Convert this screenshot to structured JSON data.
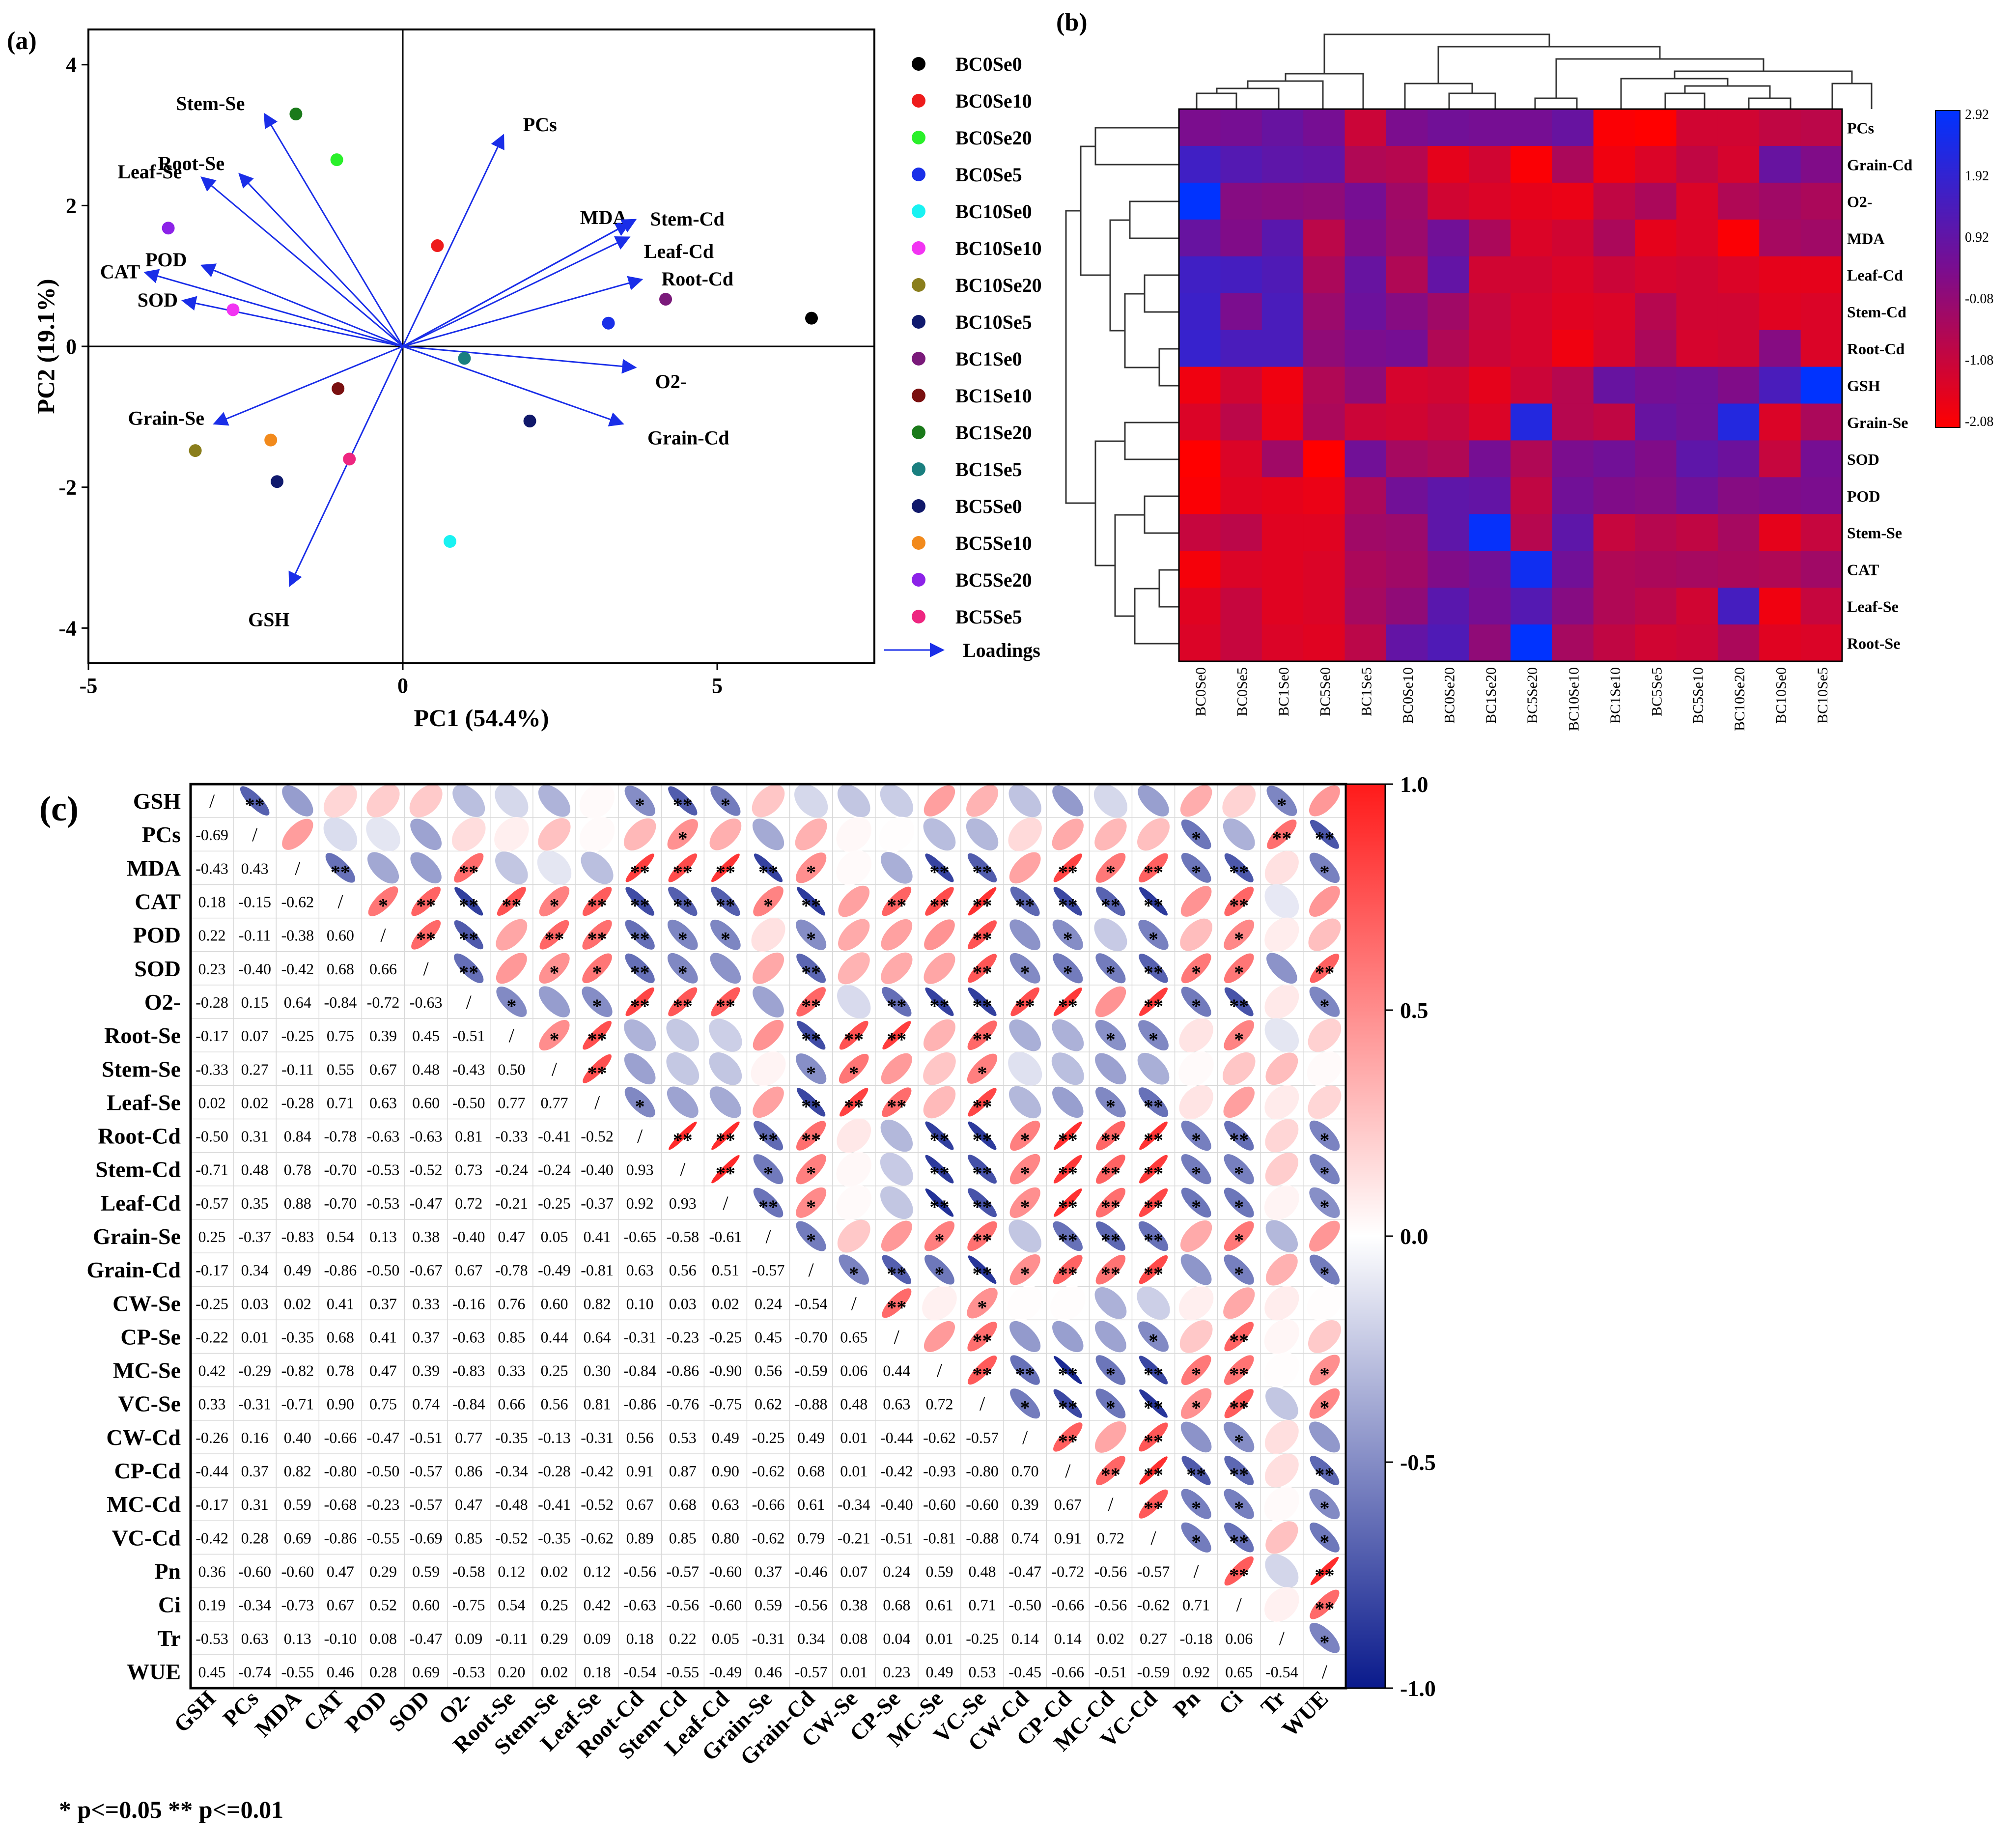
{
  "chart_data": [
    {
      "type": "scatter",
      "panel_label": "(a)",
      "xlabel": "PC1 (54.4%)",
      "ylabel": "PC2 (19.1%)",
      "xlim": [
        -5,
        7.5
      ],
      "ylim": [
        -4.5,
        4.5
      ],
      "xticks": [
        -5,
        0,
        5
      ],
      "yticks": [
        -4,
        -2,
        0,
        2,
        4
      ],
      "xtick_labels": [
        "-5",
        "0",
        "5"
      ],
      "ytick_labels": [
        "-4",
        "-2",
        "0",
        "2",
        "4"
      ],
      "legend_position": "right",
      "loadings_label": "Loadings",
      "points": [
        {
          "name": "BC0Se0",
          "x": 6.5,
          "y": 0.4,
          "color": "#000000"
        },
        {
          "name": "BC0Se10",
          "x": 0.55,
          "y": 1.43,
          "color": "#ee1c1c"
        },
        {
          "name": "BC0Se20",
          "x": -1.05,
          "y": 2.65,
          "color": "#2af02a"
        },
        {
          "name": "BC0Se5",
          "x": 3.27,
          "y": 0.33,
          "color": "#1a30e8"
        },
        {
          "name": "BC10Se0",
          "x": 0.75,
          "y": -2.77,
          "color": "#19f2f2"
        },
        {
          "name": "BC10Se10",
          "x": -2.7,
          "y": 0.52,
          "color": "#f234f2"
        },
        {
          "name": "BC10Se20",
          "x": -3.3,
          "y": -1.48,
          "color": "#8a7e1c"
        },
        {
          "name": "BC10Se5",
          "x": -2.0,
          "y": -1.92,
          "color": "#101a6e"
        },
        {
          "name": "BC1Se0",
          "x": 4.18,
          "y": 0.67,
          "color": "#7a1a7a"
        },
        {
          "name": "BC1Se10",
          "x": -1.03,
          "y": -0.6,
          "color": "#7a1010"
        },
        {
          "name": "BC1Se20",
          "x": -1.7,
          "y": 3.3,
          "color": "#1a7a1a"
        },
        {
          "name": "BC1Se5",
          "x": 0.98,
          "y": -0.17,
          "color": "#1a7f7f"
        },
        {
          "name": "BC5Se0",
          "x": 2.02,
          "y": -1.06,
          "color": "#10186a"
        },
        {
          "name": "BC5Se10",
          "x": -2.1,
          "y": -1.33,
          "color": "#f28a1c"
        },
        {
          "name": "BC5Se20",
          "x": -3.73,
          "y": 1.68,
          "color": "#8c22e8"
        },
        {
          "name": "BC5Se5",
          "x": -0.85,
          "y": -1.6,
          "color": "#ee2680"
        }
      ],
      "loadings": [
        {
          "name": "Stem-Se",
          "x": -2.2,
          "y": 3.3
        },
        {
          "name": "Root-Se",
          "x": -2.6,
          "y": 2.45
        },
        {
          "name": "Leaf-Se",
          "x": -3.2,
          "y": 2.4
        },
        {
          "name": "POD",
          "x": -3.2,
          "y": 1.15
        },
        {
          "name": "CAT",
          "x": -4.1,
          "y": 1.05
        },
        {
          "name": "SOD",
          "x": -3.5,
          "y": 0.65
        },
        {
          "name": "PCs",
          "x": 1.6,
          "y": 3.0
        },
        {
          "name": "MDA",
          "x": 3.6,
          "y": 1.75
        },
        {
          "name": "Stem-Cd",
          "x": 3.7,
          "y": 1.8
        },
        {
          "name": "Leaf-Cd",
          "x": 3.6,
          "y": 1.55
        },
        {
          "name": "Root-Cd",
          "x": 3.8,
          "y": 0.95
        },
        {
          "name": "O2-",
          "x": 3.7,
          "y": -0.3
        },
        {
          "name": "Grain-Cd",
          "x": 3.5,
          "y": -1.1
        },
        {
          "name": "Grain-Se",
          "x": -3.0,
          "y": -1.1
        },
        {
          "name": "GSH",
          "x": -1.8,
          "y": -3.4
        }
      ],
      "arrow_color": "#1a2ee8"
    },
    {
      "type": "heatmap",
      "panel_label": "(b)",
      "columns": [
        "BC0Se0",
        "BC0Se5",
        "BC1Se0",
        "BC5Se0",
        "BC1Se5",
        "BC0Se10",
        "BC0Se20",
        "BC1Se20",
        "BC5Se20",
        "BC10Se10",
        "BC1Se10",
        "BC5Se5",
        "BC5Se10",
        "BC10Se20",
        "BC10Se0",
        "BC10Se5"
      ],
      "rows": [
        "PCs",
        "Grain-Cd",
        "O2-",
        "MDA",
        "Leaf-Cd",
        "Stem-Cd",
        "Root-Cd",
        "GSH",
        "Grain-Se",
        "SOD",
        "POD",
        "Stem-Se",
        "CAT",
        "Leaf-Se",
        "Root-Se"
      ],
      "values": [
        [
          0.4,
          0.5,
          0.8,
          0.5,
          -1.1,
          0.4,
          0.6,
          0.5,
          0.5,
          0.8,
          -2.0,
          -2.08,
          -1.2,
          -1.2,
          -0.9,
          -0.8
        ],
        [
          1.6,
          1.2,
          1.0,
          0.9,
          -0.6,
          -0.7,
          -1.6,
          -1.2,
          -2.0,
          -0.5,
          -1.8,
          -1.4,
          -0.9,
          -1.3,
          0.8,
          0.3
        ],
        [
          2.9,
          0.2,
          0.1,
          0.0,
          0.5,
          -0.3,
          -1.2,
          -1.4,
          -1.6,
          -1.7,
          -0.9,
          -0.5,
          -1.4,
          -0.6,
          -0.3,
          -0.5
        ],
        [
          0.8,
          0.3,
          1.1,
          -0.8,
          0.3,
          -0.2,
          0.6,
          -0.5,
          -1.4,
          -1.2,
          -0.5,
          -1.6,
          -1.4,
          -2.0,
          -0.4,
          -0.3
        ],
        [
          1.6,
          1.5,
          1.3,
          -0.5,
          0.8,
          -0.6,
          0.9,
          -1.2,
          -1.2,
          -1.4,
          -1.1,
          -1.3,
          -1.2,
          -1.4,
          -1.6,
          -1.6
        ],
        [
          1.7,
          0.4,
          1.4,
          -0.2,
          0.7,
          0.2,
          -0.3,
          -1.0,
          -1.3,
          -1.5,
          -1.4,
          -0.7,
          -1.2,
          -1.2,
          -1.5,
          -1.4
        ],
        [
          1.8,
          1.4,
          1.4,
          0.0,
          0.4,
          0.5,
          -0.6,
          -1.1,
          -1.3,
          -1.8,
          -1.3,
          -0.5,
          -1.3,
          -1.2,
          0.2,
          -1.4
        ],
        [
          -1.8,
          -1.2,
          -1.8,
          -0.6,
          0.0,
          -1.3,
          -1.2,
          -1.6,
          -1.1,
          -0.7,
          0.8,
          0.5,
          0.6,
          0.3,
          1.4,
          2.9
        ],
        [
          -1.4,
          -0.8,
          -1.7,
          -0.5,
          -1.1,
          -1.2,
          -1.0,
          -1.4,
          2.2,
          -0.7,
          -0.9,
          0.8,
          0.6,
          2.2,
          -1.4,
          -0.5
        ],
        [
          -2.08,
          -1.4,
          -0.3,
          -2.08,
          0.6,
          -0.4,
          -0.6,
          0.5,
          -0.6,
          0.4,
          0.6,
          0.3,
          1.0,
          0.7,
          -1.0,
          0.5
        ],
        [
          -2.0,
          -1.5,
          -1.6,
          -1.7,
          -0.5,
          0.6,
          1.0,
          0.9,
          -0.9,
          0.6,
          0.3,
          0.2,
          0.6,
          0.2,
          0.3,
          0.4
        ],
        [
          -1.0,
          -0.8,
          -1.5,
          -1.5,
          -0.3,
          -0.2,
          1.0,
          2.8,
          -0.7,
          1.0,
          -1.0,
          -0.7,
          -0.9,
          -0.4,
          -1.6,
          -1.0
        ],
        [
          -1.9,
          -1.4,
          -1.5,
          -1.4,
          -0.5,
          -0.3,
          0.3,
          0.6,
          2.6,
          0.6,
          -0.6,
          -0.5,
          -0.4,
          -0.5,
          -0.6,
          -0.3
        ],
        [
          -1.5,
          -1.0,
          -1.5,
          -1.4,
          -0.4,
          0.0,
          1.1,
          0.5,
          1.2,
          0.2,
          -0.6,
          -0.8,
          -1.2,
          1.5,
          -1.8,
          -1.0
        ],
        [
          -1.4,
          -1.0,
          -1.4,
          -1.5,
          -0.8,
          0.9,
          1.3,
          0.0,
          2.9,
          -0.4,
          -0.9,
          -1.2,
          -1.1,
          -0.5,
          -1.5,
          -1.4
        ]
      ],
      "colorbar": {
        "min": -2.08,
        "max": 2.92,
        "ticks": [
          "2.92",
          "1.92",
          "0.92",
          "-0.08",
          "-1.08",
          "-2.08"
        ],
        "low_color": "#ff0000",
        "mid_color": "#7a0d8f",
        "high_color": "#0033ff"
      }
    },
    {
      "type": "heatmap",
      "panel_label": "(c)",
      "variables": [
        "GSH",
        "PCs",
        "MDA",
        "CAT",
        "POD",
        "SOD",
        "O2-",
        "Root-Se",
        "Stem-Se",
        "Leaf-Se",
        "Root-Cd",
        "Stem-Cd",
        "Leaf-Cd",
        "Grain-Se",
        "Grain-Cd",
        "CW-Se",
        "CP-Se",
        "MC-Se",
        "VC-Se",
        "CW-Cd",
        "CP-Cd",
        "MC-Cd",
        "VC-Cd",
        "Pn",
        "Ci",
        "Tr",
        "WUE"
      ],
      "lower_triangle_values": [
        [],
        [
          -0.69
        ],
        [
          -0.43,
          0.43
        ],
        [
          0.18,
          -0.15,
          -0.62
        ],
        [
          0.22,
          -0.11,
          -0.38,
          0.6
        ],
        [
          0.23,
          -0.4,
          -0.42,
          0.68,
          0.66
        ],
        [
          -0.28,
          0.15,
          0.64,
          -0.84,
          -0.72,
          -0.63
        ],
        [
          -0.17,
          0.07,
          -0.25,
          0.75,
          0.39,
          0.45,
          -0.51
        ],
        [
          -0.33,
          0.27,
          -0.11,
          0.55,
          0.67,
          0.48,
          -0.43,
          0.5
        ],
        [
          0.02,
          0.02,
          -0.28,
          0.71,
          0.63,
          0.6,
          -0.5,
          0.77,
          0.77
        ],
        [
          -0.5,
          0.31,
          0.84,
          -0.78,
          -0.63,
          -0.63,
          0.81,
          -0.33,
          -0.41,
          -0.52
        ],
        [
          -0.71,
          0.48,
          0.78,
          -0.7,
          -0.53,
          -0.52,
          0.73,
          -0.24,
          -0.24,
          -0.4,
          0.93
        ],
        [
          -0.57,
          0.35,
          0.88,
          -0.7,
          -0.53,
          -0.47,
          0.72,
          -0.21,
          -0.25,
          -0.37,
          0.92,
          0.93
        ],
        [
          0.25,
          -0.37,
          -0.83,
          0.54,
          0.13,
          0.38,
          -0.4,
          0.47,
          0.05,
          0.41,
          -0.65,
          -0.58,
          -0.61
        ],
        [
          -0.17,
          0.34,
          0.49,
          -0.86,
          -0.5,
          -0.67,
          0.67,
          -0.78,
          -0.49,
          -0.81,
          0.63,
          0.56,
          0.51,
          -0.57
        ],
        [
          -0.25,
          0.03,
          0.02,
          0.41,
          0.37,
          0.33,
          -0.16,
          0.76,
          0.6,
          0.82,
          0.099,
          0.03,
          0.02,
          0.24,
          -0.54
        ],
        [
          -0.22,
          0.01,
          -0.35,
          0.68,
          0.41,
          0.37,
          -0.63,
          0.85,
          0.44,
          0.64,
          -0.31,
          -0.23,
          -0.25,
          0.45,
          -0.7,
          0.65
        ],
        [
          0.42,
          -0.29,
          -0.82,
          0.78,
          0.47,
          0.39,
          -0.83,
          0.33,
          0.25,
          0.3,
          -0.84,
          -0.86,
          -0.9,
          0.56,
          -0.59,
          0.06,
          0.44
        ],
        [
          0.33,
          -0.31,
          -0.71,
          0.9,
          0.75,
          0.74,
          -0.84,
          0.66,
          0.56,
          0.81,
          -0.86,
          -0.76,
          -0.75,
          0.62,
          -0.88,
          0.48,
          0.63,
          0.72
        ],
        [
          -0.26,
          0.16,
          0.4,
          -0.66,
          -0.47,
          -0.51,
          0.77,
          -0.35,
          -0.13,
          -0.31,
          0.56,
          0.53,
          0.49,
          -0.25,
          0.49,
          0.01,
          -0.44,
          -0.62,
          -0.57
        ],
        [
          -0.44,
          0.37,
          0.82,
          -0.8,
          -0.5,
          -0.57,
          0.86,
          -0.34,
          -0.28,
          -0.42,
          0.91,
          0.87,
          0.9,
          -0.62,
          0.68,
          0.01,
          -0.42,
          -0.93,
          -0.8,
          0.7
        ],
        [
          -0.17,
          0.31,
          0.59,
          -0.68,
          -0.23,
          -0.57,
          0.47,
          -0.48,
          -0.41,
          -0.52,
          0.67,
          0.68,
          0.63,
          -0.66,
          0.61,
          -0.34,
          -0.4,
          -0.6,
          -0.6,
          0.39,
          0.67
        ],
        [
          -0.42,
          0.28,
          0.69,
          -0.86,
          -0.55,
          -0.69,
          0.85,
          -0.52,
          -0.35,
          -0.62,
          0.89,
          0.85,
          0.8,
          -0.62,
          0.79,
          -0.21,
          -0.51,
          -0.81,
          -0.88,
          0.74,
          0.91,
          0.72
        ],
        [
          0.36,
          -0.6,
          -0.6,
          0.47,
          0.29,
          0.59,
          -0.58,
          0.12,
          0.02,
          0.12,
          -0.56,
          -0.57,
          -0.6,
          0.37,
          -0.46,
          0.068,
          0.24,
          0.59,
          0.48,
          -0.47,
          -0.72,
          -0.56,
          -0.57
        ],
        [
          0.19,
          -0.34,
          -0.73,
          0.67,
          0.52,
          0.6,
          -0.75,
          0.54,
          0.25,
          0.42,
          -0.63,
          -0.56,
          -0.6,
          0.59,
          -0.56,
          0.38,
          0.68,
          0.61,
          0.71,
          -0.5,
          -0.66,
          -0.56,
          -0.62,
          0.71
        ],
        [
          -0.53,
          0.63,
          0.13,
          -0.1,
          0.08,
          -0.47,
          0.094,
          -0.11,
          0.29,
          0.089,
          0.18,
          0.22,
          0.05,
          -0.31,
          0.34,
          0.08,
          0.04,
          0.01,
          -0.25,
          0.14,
          0.14,
          0.02,
          0.27,
          -0.18,
          0.062
        ],
        [
          0.45,
          -0.74,
          -0.55,
          0.46,
          0.28,
          0.69,
          -0.53,
          0.2,
          0.02,
          0.18,
          -0.54,
          -0.55,
          -0.49,
          0.46,
          -0.57,
          0.01,
          0.23,
          0.49,
          0.53,
          -0.45,
          -0.66,
          -0.51,
          -0.59,
          0.92,
          0.65,
          -0.54
        ]
      ],
      "diagonal_label": "/",
      "colorbar": {
        "min": -1.0,
        "max": 1.0,
        "ticks": [
          "1.0",
          "0.5",
          "0.0",
          "-0.5",
          "-1.0"
        ],
        "low_color": "#0a1a8c",
        "mid_color": "#ffffff",
        "high_color": "#ff1a1a"
      },
      "significance_note": "* p<=0.05  ** p<=0.01"
    }
  ]
}
